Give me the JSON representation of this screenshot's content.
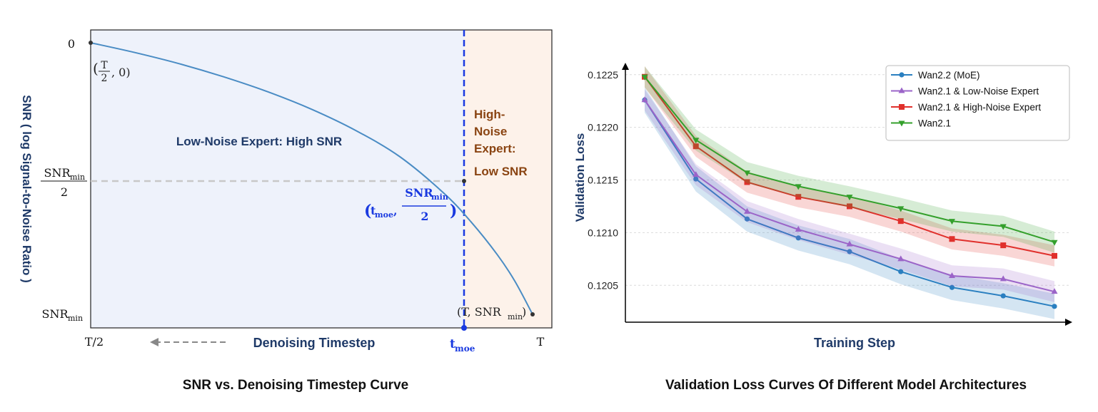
{
  "colors": {
    "low_noise_region": "#eef2fb",
    "high_noise_region": "#fdf2ea",
    "curve": "#4a8cc4",
    "title_navy": "#1f3a68",
    "tmoe_blue": "#1a3ae0",
    "high_noise_text": "#8a4412",
    "series_wan22": "#2a7fc0",
    "series_low": "#9b64c8",
    "series_high": "#e0302c",
    "series_wan21": "#34a02c"
  },
  "chart_data": [
    {
      "type": "line",
      "title": "SNR vs. Denoising Timestep Curve",
      "xlabel": "Denoising Timestep",
      "ylabel": "SNR ( log Signal-to-Noise Ratio )",
      "x_ticks": [
        "T/2",
        "t_moe",
        "T"
      ],
      "x_range": [
        0.5,
        1.0
      ],
      "y_ticks": [
        "0",
        "SNR_min/2",
        "SNR_min"
      ],
      "y_range": [
        0,
        1
      ],
      "curve": {
        "x": [
          0.5,
          0.55,
          0.6,
          0.65,
          0.7,
          0.75,
          0.8,
          0.85,
          0.9,
          0.93,
          0.96,
          0.98,
          1.0
        ],
        "y_fraction_of_snr_min": [
          0.0,
          0.036,
          0.077,
          0.125,
          0.18,
          0.245,
          0.323,
          0.42,
          0.555,
          0.658,
          0.78,
          0.878,
          1.0
        ]
      },
      "t_moe": 0.89,
      "regions": [
        "Low-Noise Expert: High SNR",
        "High-Noise Expert: Low SNR"
      ],
      "annotations": {
        "start_point": "(T/2, 0)",
        "boundary_point": "(t_moe, SNR_min/2)",
        "end_point": "(T, SNR_min)"
      },
      "arrow_direction": "left"
    },
    {
      "type": "line",
      "title": "Validation Loss Curves Of Different Model Architectures",
      "xlabel": "Training Step",
      "ylabel": "Validation Loss",
      "ylim": [
        0.12015,
        0.1226
      ],
      "y_ticks": [
        0.1205,
        0.121,
        0.1215,
        0.122,
        0.1225
      ],
      "legend_position": "top-right",
      "x": [
        1,
        2,
        3,
        4,
        5,
        6,
        7,
        8,
        9
      ],
      "series": [
        {
          "name": "Wan2.2 (MoE)",
          "marker": "circle",
          "values": [
            0.12226,
            0.12151,
            0.12113,
            0.12095,
            0.12082,
            0.12063,
            0.12048,
            0.1204,
            0.1203
          ],
          "band": 0.00012
        },
        {
          "name": "Wan2.1 & Low-Noise Expert",
          "marker": "triangle-up",
          "values": [
            0.12226,
            0.12155,
            0.1212,
            0.12103,
            0.12089,
            0.12075,
            0.12059,
            0.12056,
            0.12044
          ],
          "band": 0.0001
        },
        {
          "name": "Wan2.1 & High-Noise Expert",
          "marker": "square",
          "values": [
            0.12248,
            0.12182,
            0.12148,
            0.12134,
            0.12125,
            0.12111,
            0.12094,
            0.12088,
            0.12078
          ],
          "band": 0.0001
        },
        {
          "name": "Wan2.1",
          "marker": "triangle-down",
          "values": [
            0.12248,
            0.12188,
            0.12157,
            0.12144,
            0.12134,
            0.12123,
            0.12111,
            0.12106,
            0.12091
          ],
          "band": 0.0001
        }
      ]
    }
  ]
}
